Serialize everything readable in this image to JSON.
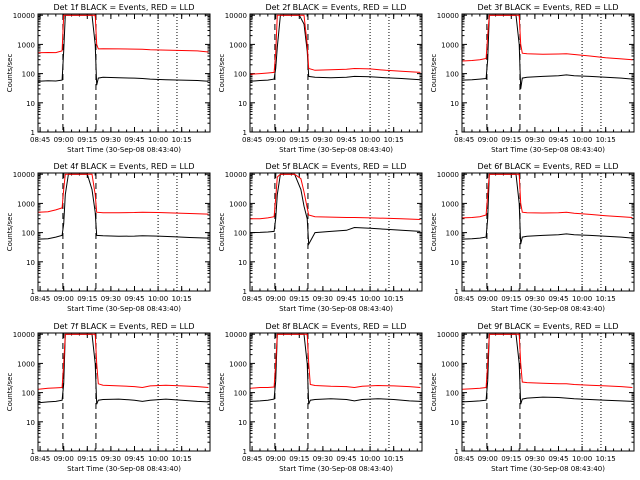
{
  "colors": {
    "events": "#000000",
    "lld": "#ff0000",
    "axes": "#000000",
    "background": "#ffffff"
  },
  "common": {
    "xlabel": "Start Time (30-Sep-08 08:43:40)",
    "ylabel": "Counts/sec",
    "x_ticks": [
      "08:45",
      "09:00",
      "09:15",
      "09:30",
      "09:45",
      "10:00",
      "10:15"
    ],
    "x_tick_minutes": [
      45,
      60,
      75,
      90,
      105,
      120,
      135
    ],
    "xlim_minutes": [
      43.67,
      153
    ],
    "y_scale": "log",
    "ylim": [
      1,
      11000
    ],
    "y_ticks": [
      "1",
      "10",
      "100",
      "1000",
      "10000"
    ],
    "y_tick_values": [
      1,
      10,
      100,
      1000,
      10000
    ],
    "markers": {
      "E_dashed": [
        59.5,
        80.5
      ],
      "S_dashed": [
        59.5,
        80.5
      ],
      "dotted": [
        120,
        132
      ],
      "E_label_minutes": 45,
      "S_label_minutes": 60.5,
      "E2_label_minutes": 127
    }
  },
  "chart_data": [
    {
      "type": "line",
      "title": "Det 1f BLACK = Events, RED = LLD",
      "x_minutes": [
        44,
        50,
        55,
        59,
        60,
        61,
        70,
        78,
        80,
        81,
        82,
        85,
        95,
        105,
        110,
        115,
        125,
        135,
        145,
        152
      ],
      "series": [
        {
          "name": "BLACK = Events",
          "values": [
            55,
            57,
            56,
            60,
            600,
            10000,
            10000,
            10000,
            1000,
            40,
            70,
            75,
            72,
            70,
            68,
            65,
            62,
            60,
            58,
            55
          ]
        },
        {
          "name": "RED = LLD",
          "values": [
            520,
            530,
            525,
            600,
            10000,
            10000,
            10000,
            10000,
            10000,
            1000,
            700,
            710,
            700,
            690,
            680,
            660,
            640,
            620,
            600,
            550
          ]
        }
      ]
    },
    {
      "type": "line",
      "title": "Det 2f BLACK = Events, RED = LLD",
      "x_minutes": [
        44,
        50,
        55,
        59,
        60,
        61,
        63,
        75,
        78,
        80,
        81,
        85,
        95,
        105,
        110,
        120,
        130,
        140,
        152
      ],
      "series": [
        {
          "name": "BLACK = Events",
          "values": [
            55,
            58,
            60,
            65,
            150,
            800,
            10000,
            10000,
            5000,
            600,
            80,
            75,
            72,
            75,
            80,
            78,
            72,
            68,
            62
          ]
        },
        {
          "name": "RED = LLD",
          "values": [
            95,
            100,
            105,
            110,
            500,
            10000,
            10000,
            10000,
            10000,
            1000,
            150,
            130,
            135,
            140,
            150,
            145,
            130,
            120,
            110
          ]
        }
      ]
    },
    {
      "type": "line",
      "title": "Det 3f BLACK = Events, RED = LLD",
      "x_minutes": [
        44,
        50,
        55,
        59,
        60,
        61,
        70,
        78,
        80,
        81,
        82,
        85,
        95,
        105,
        110,
        115,
        125,
        135,
        145,
        152
      ],
      "series": [
        {
          "name": "BLACK = Events",
          "values": [
            60,
            62,
            65,
            68,
            300,
            10000,
            10000,
            10000,
            1000,
            30,
            70,
            75,
            80,
            85,
            90,
            85,
            80,
            75,
            70,
            65
          ]
        },
        {
          "name": "RED = LLD",
          "values": [
            270,
            280,
            300,
            330,
            2000,
            10000,
            10000,
            10000,
            10000,
            1000,
            500,
            480,
            460,
            470,
            480,
            450,
            400,
            350,
            320,
            300
          ]
        }
      ]
    },
    {
      "type": "line",
      "title": "Det 4f BLACK = Events, RED = LLD",
      "x_minutes": [
        44,
        50,
        55,
        59,
        60,
        61,
        63,
        75,
        78,
        80,
        81,
        85,
        95,
        105,
        110,
        120,
        130,
        140,
        152
      ],
      "series": [
        {
          "name": "BLACK = Events",
          "values": [
            60,
            62,
            70,
            80,
            200,
            2000,
            10000,
            10000,
            3000,
            500,
            80,
            78,
            75,
            76,
            78,
            76,
            72,
            68,
            65
          ]
        },
        {
          "name": "RED = LLD",
          "values": [
            500,
            520,
            600,
            700,
            3000,
            10000,
            10000,
            10000,
            10000,
            2000,
            500,
            480,
            480,
            490,
            500,
            490,
            470,
            450,
            430
          ]
        }
      ]
    },
    {
      "type": "line",
      "title": "Det 5f BLACK = Events, RED = LLD",
      "x_minutes": [
        44,
        50,
        55,
        59,
        60,
        61,
        63,
        72,
        76,
        78,
        80,
        81,
        85,
        95,
        105,
        110,
        120,
        130,
        140,
        152
      ],
      "series": [
        {
          "name": "BLACK = Events",
          "values": [
            100,
            102,
            105,
            110,
            300,
            2000,
            10000,
            10000,
            3000,
            800,
            300,
            40,
            100,
            110,
            120,
            150,
            140,
            130,
            120,
            110
          ]
        },
        {
          "name": "RED = LLD",
          "values": [
            300,
            300,
            320,
            350,
            1500,
            8000,
            10000,
            10000,
            7000,
            2500,
            700,
            400,
            350,
            340,
            330,
            330,
            320,
            310,
            300,
            280
          ]
        }
      ]
    },
    {
      "type": "line",
      "title": "Det 6f BLACK = Events, RED = LLD",
      "x_minutes": [
        44,
        50,
        55,
        59,
        60,
        61,
        70,
        78,
        80,
        81,
        82,
        85,
        95,
        105,
        110,
        115,
        125,
        135,
        145,
        152
      ],
      "series": [
        {
          "name": "BLACK = Events",
          "values": [
            60,
            62,
            65,
            70,
            300,
            10000,
            10000,
            10000,
            1000,
            40,
            70,
            75,
            80,
            85,
            90,
            85,
            80,
            75,
            70,
            65
          ]
        },
        {
          "name": "RED = LLD",
          "values": [
            320,
            330,
            350,
            400,
            2000,
            10000,
            10000,
            10000,
            10000,
            1000,
            500,
            480,
            470,
            480,
            500,
            460,
            420,
            380,
            350,
            330
          ]
        }
      ]
    },
    {
      "type": "line",
      "title": "Det 7f BLACK = Events, RED = LLD",
      "x_minutes": [
        44,
        50,
        55,
        59,
        60,
        61,
        70,
        78,
        80,
        81,
        82,
        85,
        95,
        105,
        110,
        115,
        125,
        135,
        145,
        152
      ],
      "series": [
        {
          "name": "BLACK = Events",
          "values": [
            45,
            48,
            50,
            55,
            200,
            10000,
            10000,
            10000,
            1000,
            40,
            55,
            58,
            60,
            55,
            50,
            55,
            60,
            55,
            50,
            48
          ]
        },
        {
          "name": "RED = LLD",
          "values": [
            130,
            140,
            145,
            150,
            1000,
            10000,
            10000,
            10000,
            10000,
            1000,
            200,
            180,
            170,
            160,
            150,
            170,
            180,
            170,
            160,
            150
          ]
        }
      ]
    },
    {
      "type": "line",
      "title": "Det 8f BLACK = Events, RED = LLD",
      "x_minutes": [
        44,
        50,
        55,
        59,
        60,
        61,
        70,
        78,
        80,
        81,
        82,
        85,
        95,
        105,
        110,
        115,
        125,
        135,
        145,
        152
      ],
      "series": [
        {
          "name": "BLACK = Events",
          "values": [
            50,
            52,
            55,
            60,
            250,
            10000,
            10000,
            10000,
            1000,
            40,
            55,
            58,
            62,
            58,
            52,
            58,
            62,
            58,
            52,
            50
          ]
        },
        {
          "name": "RED = LLD",
          "values": [
            140,
            150,
            150,
            155,
            1000,
            10000,
            10000,
            10000,
            10000,
            1000,
            190,
            175,
            165,
            160,
            150,
            165,
            175,
            170,
            160,
            150
          ]
        }
      ]
    },
    {
      "type": "line",
      "title": "Det 9f BLACK = Events, RED = LLD",
      "x_minutes": [
        44,
        50,
        55,
        59,
        60,
        61,
        70,
        78,
        80,
        81,
        82,
        85,
        95,
        105,
        110,
        115,
        125,
        135,
        145,
        152
      ],
      "series": [
        {
          "name": "BLACK = Events",
          "values": [
            48,
            50,
            52,
            55,
            250,
            10000,
            10000,
            10000,
            1000,
            40,
            60,
            65,
            70,
            68,
            65,
            62,
            58,
            55,
            52,
            50
          ]
        },
        {
          "name": "RED = LLD",
          "values": [
            130,
            135,
            140,
            150,
            1000,
            10000,
            10000,
            10000,
            10000,
            1000,
            230,
            220,
            210,
            200,
            200,
            190,
            180,
            170,
            160,
            150
          ]
        }
      ]
    }
  ]
}
